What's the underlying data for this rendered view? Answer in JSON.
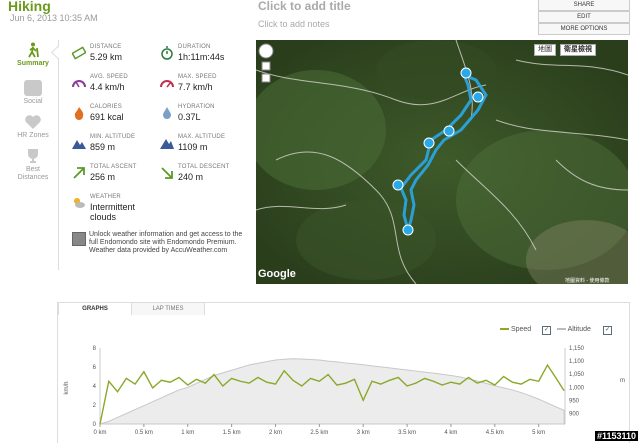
{
  "header": {
    "sport": "Hiking",
    "date": "Jun 6, 2013 10:35 AM",
    "title_placeholder": "Click to add title",
    "notes_placeholder": "Click to add notes"
  },
  "actions": {
    "share": "SHARE",
    "edit": "EDIT",
    "more": "MORE OPTIONS"
  },
  "sidebar": {
    "items": [
      {
        "label": "Summary",
        "icon": "hiker-icon"
      },
      {
        "label": "Social",
        "icon": "speech-bubble-icon"
      },
      {
        "label": "HR Zones",
        "icon": "heart-icon"
      },
      {
        "label": "Best Distances",
        "icon": "trophy-icon"
      }
    ]
  },
  "stats": {
    "distance": {
      "label": "DISTANCE",
      "value": "5.29 km"
    },
    "duration": {
      "label": "DURATION",
      "value": "1h:11m:44s"
    },
    "avg_speed": {
      "label": "AVG. SPEED",
      "value": "4.4 km/h"
    },
    "max_speed": {
      "label": "MAX. SPEED",
      "value": "7.7 km/h"
    },
    "calories": {
      "label": "CALORIES",
      "value": "691 kcal"
    },
    "hydration": {
      "label": "HYDRATION",
      "value": "0.37L"
    },
    "min_altitude": {
      "label": "MIN. ALTITUDE",
      "value": "859 m"
    },
    "max_altitude": {
      "label": "MAX. ALTITUDE",
      "value": "1109 m"
    },
    "total_ascent": {
      "label": "TOTAL ASCENT",
      "value": "256 m"
    },
    "total_descent": {
      "label": "TOTAL DESCENT",
      "value": "240 m"
    },
    "weather": {
      "label": "WEATHER",
      "value": "Intermittent clouds"
    }
  },
  "promo": {
    "text": "Unlock weather information and get access to the full Endomondo site with Endomondo Premium.",
    "credit": "Weather data provided by AccuWeather.com"
  },
  "map": {
    "type_buttons": [
      "地圖",
      "衛星檢視"
    ],
    "google": "Google",
    "copyright": "地圖資料 - 使用條款",
    "route_markers": [
      "1",
      "2",
      "3",
      "4",
      "5"
    ]
  },
  "graph": {
    "tabs": [
      "GRAPHS",
      "LAP TIMES"
    ],
    "legend": {
      "speed": "Speed",
      "altitude": "Altitude",
      "speed_checked": "✓",
      "altitude_checked": "✓"
    },
    "colors": {
      "speed": "#8aa82a",
      "altitude": "#cfcfcf"
    }
  },
  "chart_data": {
    "type": "line",
    "xlabel": "",
    "ylabel": "km/h",
    "y2label": "m",
    "xlim": [
      0,
      5.3
    ],
    "ylim": [
      0,
      8
    ],
    "y2lim": [
      860,
      1150
    ],
    "x_ticks": [
      "0 km",
      "0.5 km",
      "1 km",
      "1.5 km",
      "2 km",
      "2.5 km",
      "3 km",
      "3.5 km",
      "4 km",
      "4.5 km",
      "5 km"
    ],
    "y_ticks": [
      "0",
      "2",
      "4",
      "6",
      "8"
    ],
    "y2_ticks": [
      "900",
      "950",
      "1,000",
      "1,050",
      "1,100",
      "1,150"
    ],
    "x": [
      0,
      0.1,
      0.2,
      0.3,
      0.4,
      0.5,
      0.6,
      0.7,
      0.8,
      0.9,
      1.0,
      1.1,
      1.2,
      1.3,
      1.4,
      1.5,
      1.6,
      1.7,
      1.8,
      1.9,
      2.0,
      2.1,
      2.2,
      2.3,
      2.4,
      2.5,
      2.6,
      2.7,
      2.8,
      2.9,
      3.0,
      3.1,
      3.2,
      3.3,
      3.4,
      3.5,
      3.6,
      3.7,
      3.8,
      3.9,
      4.0,
      4.1,
      4.2,
      4.3,
      4.4,
      4.5,
      4.6,
      4.7,
      4.8,
      4.9,
      5.0,
      5.1,
      5.2,
      5.29
    ],
    "series": [
      {
        "name": "Speed",
        "axis": "left",
        "values": [
          0,
          4.5,
          3.4,
          4.8,
          4.2,
          5.5,
          3.8,
          4.6,
          4.4,
          4.9,
          4.1,
          4.7,
          4.3,
          5.2,
          4.0,
          4.8,
          4.5,
          4.3,
          4.9,
          4.4,
          4.2,
          5.6,
          4.6,
          4.0,
          4.8,
          4.5,
          5.2,
          4.1,
          4.3,
          4.7,
          2.5,
          4.5,
          4.2,
          4.6,
          4.9,
          4.0,
          4.3,
          4.8,
          4.5,
          4.1,
          4.4,
          4.2,
          4.9,
          4.3,
          4.6,
          4.1,
          5.0,
          4.4,
          4.2,
          4.7,
          4.5,
          6.2,
          4.8,
          3.5
        ]
      },
      {
        "name": "Altitude",
        "axis": "right",
        "values": [
          860,
          870,
          885,
          900,
          915,
          930,
          945,
          960,
          975,
          990,
          1000,
          1015,
          1030,
          1045,
          1055,
          1065,
          1075,
          1085,
          1092,
          1098,
          1104,
          1107,
          1109,
          1108,
          1106,
          1104,
          1100,
          1097,
          1093,
          1090,
          1086,
          1082,
          1078,
          1074,
          1070,
          1066,
          1062,
          1058,
          1054,
          1050,
          1045,
          1040,
          1032,
          1024,
          1015,
          1006,
          998,
          990,
          980,
          968,
          955,
          940,
          925,
          912
        ]
      }
    ]
  }
}
